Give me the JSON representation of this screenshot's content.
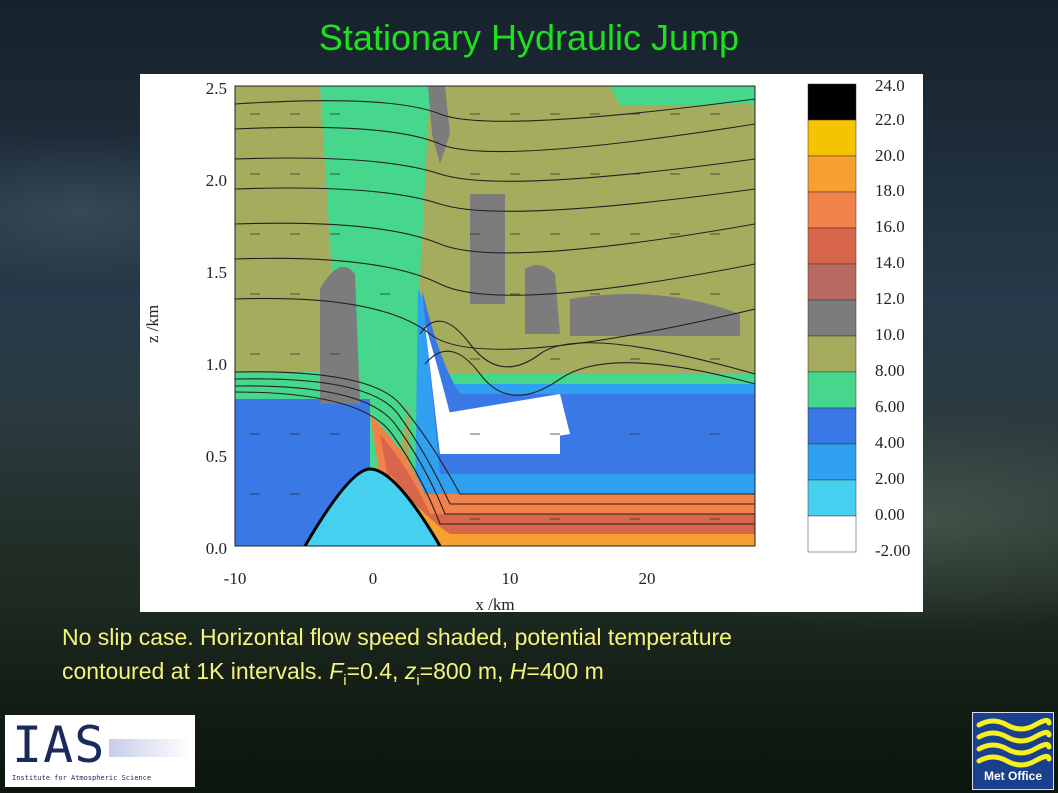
{
  "slide": {
    "title": "Stationary Hydraulic Jump",
    "caption_line1": "No slip case. Horizontal flow speed shaded, potential temperature",
    "caption_prefix": "contoured at 1K intervals.  ",
    "fi_symbol": "F",
    "fi_sub": "i",
    "fi_value": "=0.4, ",
    "zi_symbol": "z",
    "zi_sub": "i",
    "zi_value": "=800 m, ",
    "h_symbol": "H",
    "h_value": "=400 m"
  },
  "figure": {
    "ylabel": "z /km",
    "xlabel": "x /km",
    "y_ticks": [
      "2.5",
      "2.0",
      "1.5",
      "1.0",
      "0.5",
      "0.0"
    ],
    "x_ticks": [
      "-10",
      "0",
      "10",
      "20"
    ],
    "colorbar_labels": [
      "24.0",
      "22.0",
      "20.0",
      "18.0",
      "16.0",
      "14.0",
      "12.0",
      "10.0",
      "8.00",
      "6.00",
      "4.00",
      "2.00",
      "0.00",
      "-2.00"
    ],
    "colorbar_colors": [
      "#000000",
      "#f5c400",
      "#f5a030",
      "#f0824a",
      "#d8664a",
      "#b86a60",
      "#7c7c7c",
      "#a6ac5e",
      "#46d78c",
      "#3a78e6",
      "#30a0f0",
      "#46d0f0",
      "#ffffff"
    ],
    "colors": {
      "background_olive": "#a6ac5e",
      "green": "#46d78c",
      "gray": "#7c7c7c",
      "blue": "#3a78e6",
      "mid_blue": "#30a0f0",
      "cyan": "#46d0f0",
      "orange": "#f0824a",
      "red": "#d8664a"
    }
  },
  "logos": {
    "ias_letters": "IAS",
    "ias_sub": "Institute for Atmospheric Science",
    "metoffice_label": "Met Office"
  }
}
